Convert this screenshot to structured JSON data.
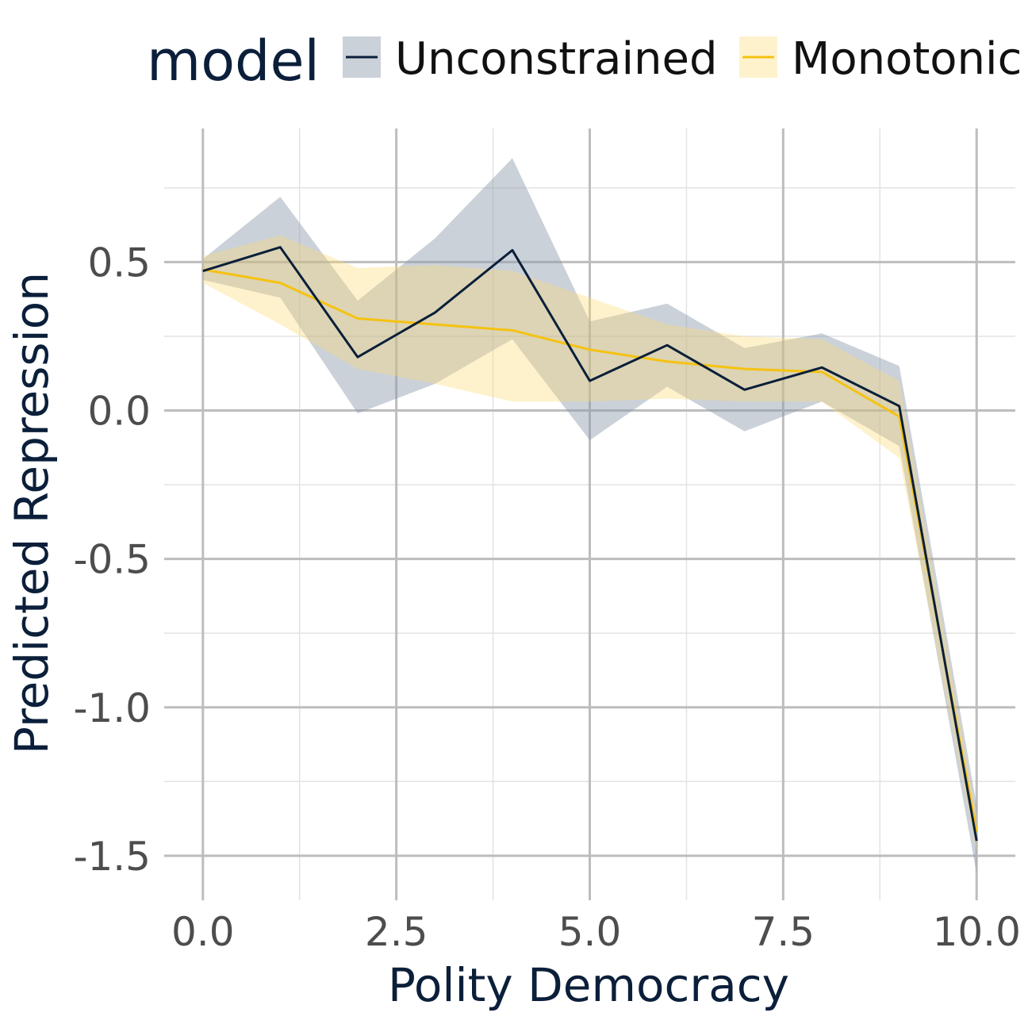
{
  "chart_data": {
    "type": "line",
    "xlabel": "Polity Democracy",
    "ylabel": "Predicted Repression",
    "xlim": [
      -0.5,
      10.5
    ],
    "ylim": [
      -1.65,
      0.95
    ],
    "x_ticks": [
      0,
      2.5,
      5,
      7.5,
      10
    ],
    "x_tick_labels": [
      "0.0",
      "2.5",
      "5.0",
      "7.5",
      "10.0"
    ],
    "y_ticks": [
      0.5,
      0,
      -0.5,
      -1,
      -1.5
    ],
    "y_tick_labels": [
      "0.5",
      "0.0",
      "-0.5",
      "-1.0",
      "-1.5"
    ],
    "grid": true,
    "legend": {
      "title": "model",
      "position": "top",
      "entries": [
        "Unconstrained",
        "Monotonic"
      ]
    },
    "x": [
      0,
      1,
      2,
      3,
      4,
      5,
      6,
      7,
      8,
      9,
      10
    ],
    "series": [
      {
        "name": "Unconstrained",
        "line_color": "#0b1f3a",
        "band_color": "#8c99aa",
        "values": [
          0.47,
          0.55,
          0.18,
          0.33,
          0.54,
          0.1,
          0.22,
          0.07,
          0.145,
          0.015,
          -1.45
        ],
        "lower": [
          0.44,
          0.38,
          -0.01,
          0.09,
          0.24,
          -0.1,
          0.08,
          -0.07,
          0.03,
          -0.12,
          -1.56
        ],
        "upper": [
          0.51,
          0.72,
          0.37,
          0.58,
          0.85,
          0.3,
          0.36,
          0.21,
          0.26,
          0.15,
          -1.33
        ]
      },
      {
        "name": "Monotonic",
        "line_color": "#f5c211",
        "band_color": "#fbdb6f",
        "values": [
          0.475,
          0.43,
          0.31,
          0.29,
          0.27,
          0.205,
          0.165,
          0.14,
          0.13,
          -0.02,
          -1.42
        ],
        "lower": [
          0.43,
          0.29,
          0.14,
          0.09,
          0.03,
          0.03,
          0.04,
          0.03,
          0.03,
          -0.16,
          -1.49
        ],
        "upper": [
          0.52,
          0.59,
          0.48,
          0.49,
          0.47,
          0.38,
          0.29,
          0.25,
          0.24,
          0.1,
          -1.36
        ]
      }
    ]
  }
}
